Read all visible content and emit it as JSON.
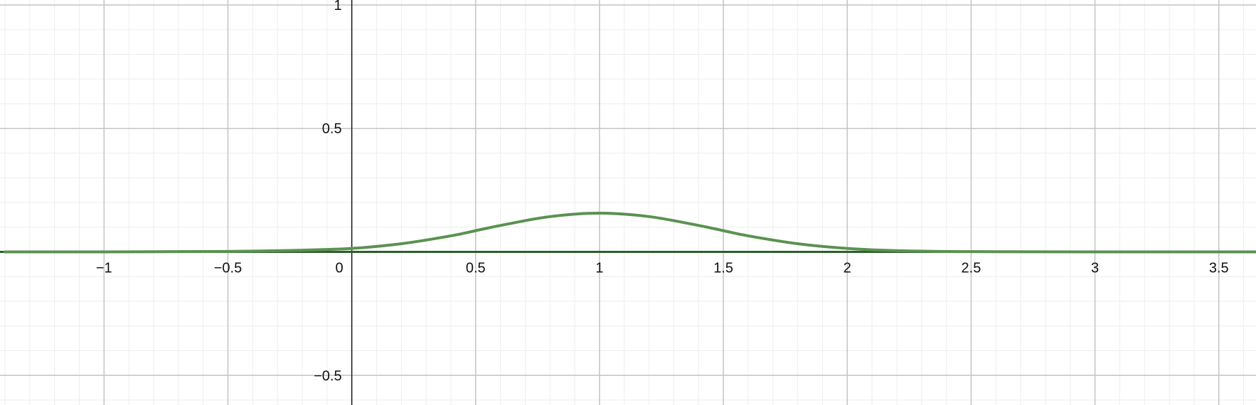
{
  "chart_data": {
    "type": "line",
    "xlim": [
      -1.42,
      3.65
    ],
    "ylim": [
      -0.62,
      1.02
    ],
    "grid": true,
    "major_step": 0.5,
    "minor_step": 0.1,
    "x_ticks": [
      {
        "value": -1,
        "label": "−1"
      },
      {
        "value": -0.5,
        "label": "−0.5"
      },
      {
        "value": 0.5,
        "label": "0.5"
      },
      {
        "value": 1,
        "label": "1"
      },
      {
        "value": 1.5,
        "label": "1.5"
      },
      {
        "value": 2,
        "label": "2"
      },
      {
        "value": 2.5,
        "label": "2.5"
      },
      {
        "value": 3,
        "label": "3"
      },
      {
        "value": 3.5,
        "label": "3.5"
      }
    ],
    "y_ticks": [
      {
        "value": 1,
        "label": "1"
      },
      {
        "value": 0.5,
        "label": "0.5"
      },
      {
        "value": -0.5,
        "label": "−0.5"
      }
    ],
    "origin_label": "0",
    "series": [
      {
        "color": "#5b9152",
        "x": [
          -1.4,
          -1.0,
          -0.5,
          -0.2,
          0.0,
          0.2,
          0.4,
          0.5,
          0.6,
          0.8,
          1.0,
          1.2,
          1.4,
          1.5,
          1.6,
          1.8,
          2.0,
          2.2,
          2.5,
          3.0,
          3.65
        ],
        "y": [
          0.0,
          0.0,
          0.002,
          0.007,
          0.014,
          0.033,
          0.065,
          0.086,
          0.107,
          0.143,
          0.157,
          0.143,
          0.107,
          0.086,
          0.065,
          0.033,
          0.014,
          0.005,
          0.001,
          0.0,
          0.0
        ]
      }
    ],
    "colors": {
      "background": "#ffffff",
      "minor_grid": "#eeeeee",
      "major_grid": "#c4c4c4",
      "axis": "#1a1a1a",
      "baseline": "#2e5e2a"
    }
  }
}
